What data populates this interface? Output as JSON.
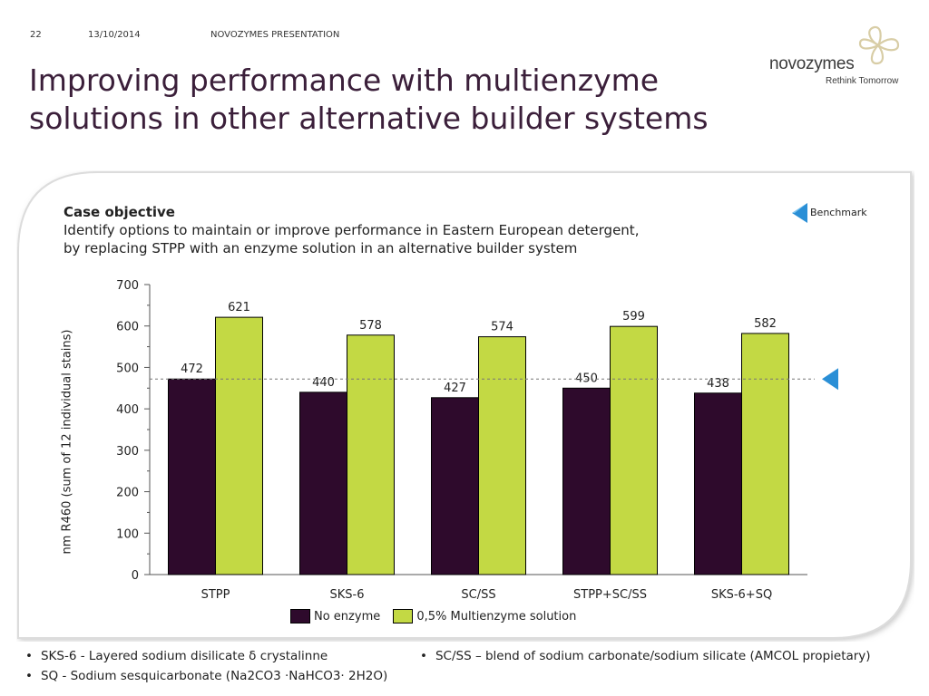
{
  "header": {
    "slide_number": "22",
    "date": "13/10/2014",
    "presentation": "NOVOZYMES PRESENTATION",
    "title_line1": "Improving performance with multienzyme",
    "title_line2": "solutions in other alternative builder systems"
  },
  "logo": {
    "wordmark": "novozymes",
    "tagline": "Rethink Tomorrow",
    "icon": "clover-logo-icon"
  },
  "case": {
    "heading": "Case objective",
    "line1": "Identify options to maintain or improve performance in Eastern European detergent,",
    "line2": "by replacing STPP with an enzyme solution in an alternative builder system"
  },
  "benchmark_label": "Benchmark",
  "chart_data": {
    "type": "bar",
    "categories": [
      "STPP",
      "SKS-6",
      "SC/SS",
      "STPP+SC/SS",
      "SKS-6+SQ"
    ],
    "series": [
      {
        "name": "No enzyme",
        "values": [
          472,
          440,
          427,
          450,
          438
        ],
        "color": "#2e0a2c"
      },
      {
        "name": "0,5% Multienzyme solution",
        "values": [
          621,
          578,
          574,
          599,
          582
        ],
        "color": "#c3d944"
      }
    ],
    "ylabel": "nm R460 (sum of 12 individual stains)",
    "ylim": [
      0,
      700
    ],
    "yticks": [
      "0",
      "100",
      "200",
      "300",
      "400",
      "500",
      "600",
      "700"
    ],
    "benchmark_value": 472,
    "legend_position": "bottom",
    "grid": false
  },
  "notes": [
    "SKS-6 - Layered sodium disilicate δ crystalinne",
    "SC/SS – blend of sodium carbonate/sodium silicate (AMCOL propietary)",
    "SQ - Sodium sesquicarbonate (Na2CO3 ·NaHCO3· 2H2O)"
  ]
}
